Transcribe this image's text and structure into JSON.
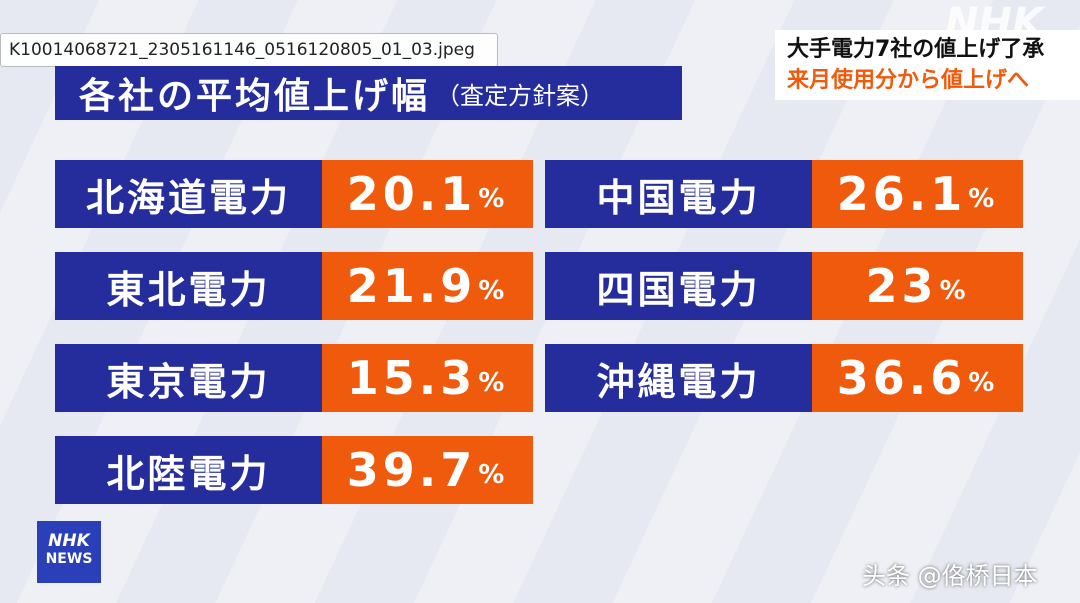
{
  "file_label": "K10014068721_2305161146_0516120805_01_03.jpeg",
  "header": {
    "title": "各社の平均値上げ幅",
    "subtitle": "（査定方針案）"
  },
  "headline": {
    "line1": "大手電力7社の値上げ了承",
    "line2": "来月使用分から値上げへ"
  },
  "logo": "NHK",
  "news_logo": {
    "top": "NHK",
    "bottom": "NEWS"
  },
  "watermark": "头条 @佫桥日本",
  "table": {
    "columns": [
      [
        {
          "company": "北海道電力",
          "value": "20.1",
          "unit": "%"
        },
        {
          "company": "東北電力",
          "value": "21.9",
          "unit": "%"
        },
        {
          "company": "東京電力",
          "value": "15.3",
          "unit": "%"
        },
        {
          "company": "北陸電力",
          "value": "39.7",
          "unit": "%"
        }
      ],
      [
        {
          "company": "中国電力",
          "value": "26.1",
          "unit": "%"
        },
        {
          "company": "四国電力",
          "value": "23",
          "unit": "%"
        },
        {
          "company": "沖縄電力",
          "value": "36.6",
          "unit": "%"
        }
      ]
    ]
  }
}
